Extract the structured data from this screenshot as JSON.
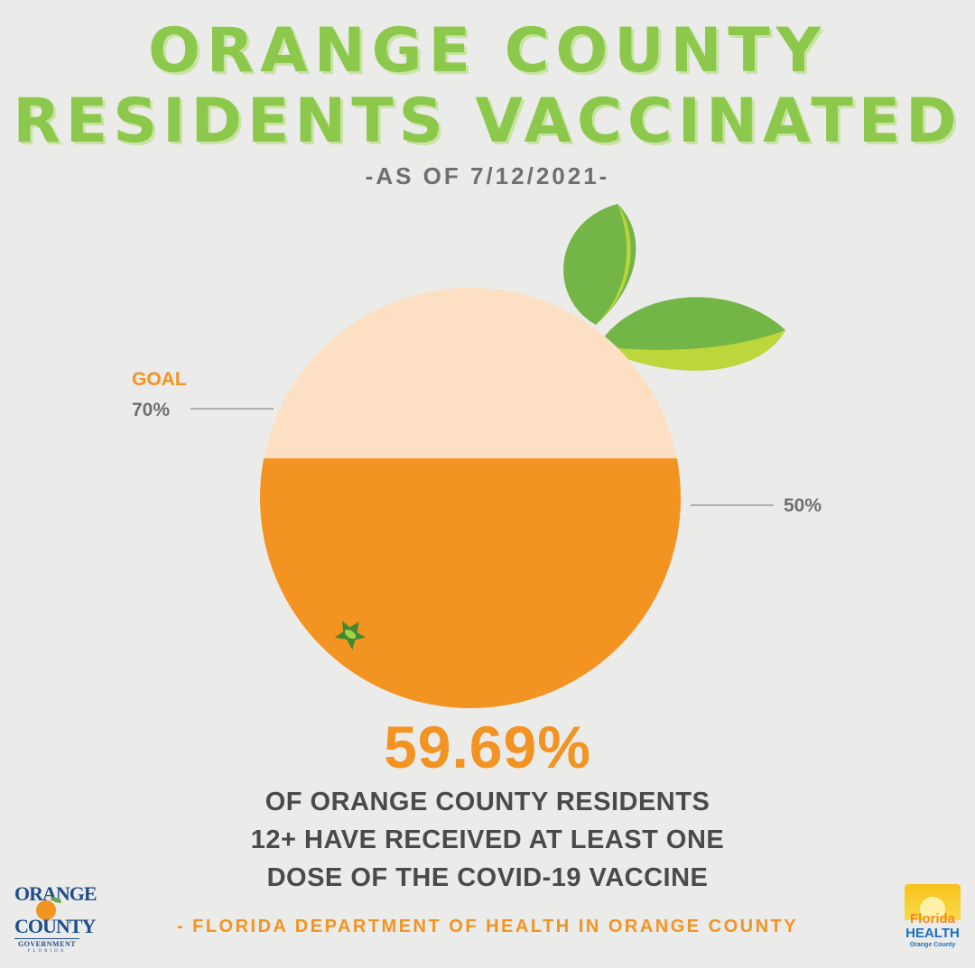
{
  "header": {
    "title_line1": "ORANGE COUNTY",
    "title_line2": "RESIDENTS VACCINATED",
    "subtitle": "-AS OF 7/12/2021-"
  },
  "chart_data": {
    "type": "pie",
    "title": "ORANGE COUNTY RESIDENTS VACCINATED",
    "value_percent": 59.69,
    "value_label": "59.69%",
    "goal_label": "GOAL",
    "goal_percent": 70,
    "goal_value_label": "70%",
    "reference_percent": 50,
    "reference_label": "50%",
    "colors": {
      "filled": "#f39321",
      "unfilled": "#fde0c4",
      "leaf_dark": "#74b547",
      "leaf_light": "#bcd63b",
      "goal_text": "#f39321",
      "label_text": "#6f6f6f"
    }
  },
  "description": {
    "line1": "OF ORANGE COUNTY RESIDENTS",
    "line2": "12+ HAVE RECEIVED AT LEAST ONE",
    "line3": "DOSE OF THE COVID-19 VACCINE"
  },
  "source": "- FLORIDA DEPARTMENT OF HEALTH IN ORANGE COUNTY",
  "logos": {
    "left": {
      "line1": "ORANGE",
      "line2": "COUNTY",
      "line3": "GOVERNMENT",
      "line4": "FLORIDA"
    },
    "right": {
      "line1": "Florida",
      "line2": "HEALTH",
      "line3": "Orange County"
    }
  }
}
